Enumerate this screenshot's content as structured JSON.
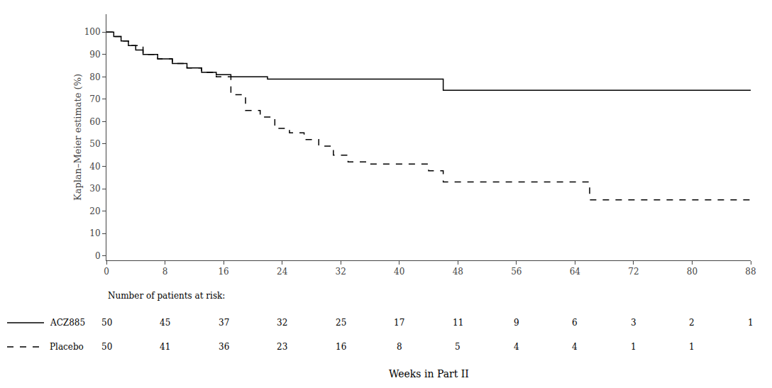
{
  "chart_data": {
    "type": "step",
    "xlabel": "Weeks in Part II",
    "ylabel": "Kaplan–Meier estimate (%)",
    "xlim": [
      0,
      88
    ],
    "ylim": [
      -2,
      108
    ],
    "xticks": [
      0,
      8,
      16,
      24,
      32,
      40,
      48,
      56,
      64,
      72,
      80,
      88
    ],
    "yticks": [
      0,
      10,
      20,
      30,
      40,
      50,
      60,
      70,
      80,
      90,
      100
    ],
    "grid": false,
    "series": [
      {
        "name": "ACZ885",
        "color": "#000000",
        "line_style": "solid",
        "x": [
          0,
          1,
          2,
          3,
          4,
          5,
          7,
          9,
          11,
          13,
          15,
          17,
          22,
          44,
          46,
          88
        ],
        "values": [
          100,
          98,
          96,
          94,
          92,
          90,
          88,
          86,
          84,
          82,
          81,
          80,
          79,
          79,
          74,
          74
        ],
        "at_risk": [
          50,
          45,
          37,
          32,
          25,
          17,
          11,
          9,
          6,
          3,
          2,
          1
        ]
      },
      {
        "name": "Placebo",
        "color": "#000000",
        "line_style": "dashed",
        "x": [
          0,
          1,
          2,
          3,
          5,
          7,
          9,
          11,
          13,
          15,
          17,
          19,
          21,
          23,
          25,
          27,
          29,
          31,
          33,
          36,
          40,
          44,
          46,
          64,
          66,
          88
        ],
        "values": [
          100,
          98,
          96,
          94,
          90,
          88,
          86,
          84,
          82,
          80,
          72,
          65,
          62,
          57,
          55,
          52,
          49,
          45,
          42,
          41,
          41,
          38,
          33,
          33,
          25,
          25
        ],
        "at_risk": [
          50,
          41,
          36,
          23,
          16,
          8,
          5,
          4,
          4,
          1,
          1,
          null
        ]
      }
    ],
    "risk_table_title": "Number of patients at risk:",
    "risk_x": [
      0,
      8,
      16,
      24,
      32,
      40,
      48,
      56,
      64,
      72,
      80,
      88
    ]
  }
}
